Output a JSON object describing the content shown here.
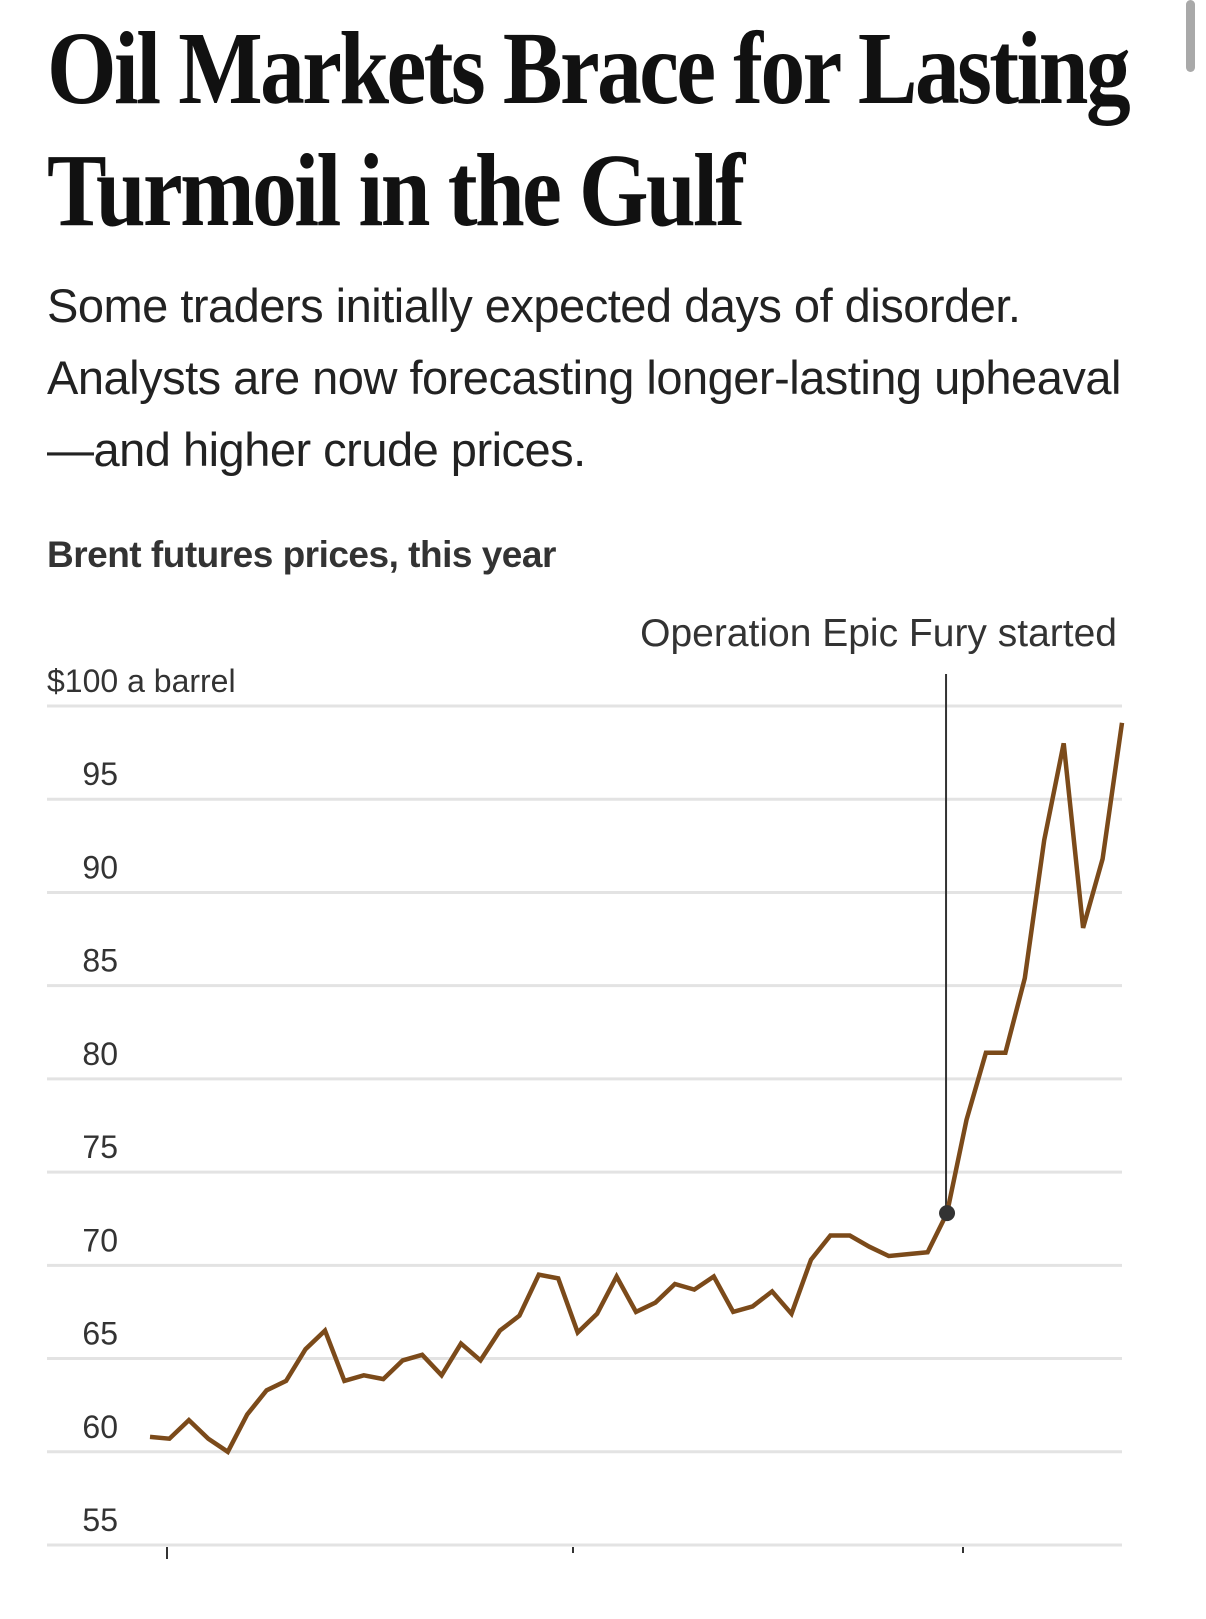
{
  "article": {
    "headline_lines": [
      "Oil Markets Brace for Lasting",
      "Turmoil in the Gulf"
    ],
    "dek": "Some traders initially expected days of disorder. Analysts are now forecasting longer-lasting upheaval—and higher crude prices."
  },
  "colors": {
    "line": "#7b4a1a",
    "annotation": "#333333",
    "grid": "#e3e3e3"
  },
  "chart_data": {
    "type": "line",
    "title": "Brent futures prices, this year",
    "xlabel": "",
    "ylabel": "$ a barrel",
    "ylim": [
      55,
      100
    ],
    "yticks": [
      55,
      60,
      65,
      70,
      75,
      80,
      85,
      90,
      95,
      100
    ],
    "ytick_labels": [
      "55",
      "60",
      "65",
      "70",
      "75",
      "80",
      "85",
      "90",
      "95",
      "$100 a barrel"
    ],
    "grid": true,
    "x_tick_indices": [
      1,
      21,
      40
    ],
    "x_tick_labels": [
      "",
      "",
      ""
    ],
    "series": [
      {
        "name": "Brent futures",
        "values": [
          60.8,
          60.7,
          61.7,
          60.7,
          60.0,
          62.0,
          63.3,
          63.8,
          65.5,
          66.5,
          63.8,
          64.1,
          63.9,
          64.9,
          65.2,
          64.1,
          65.8,
          64.9,
          66.5,
          67.3,
          69.5,
          69.3,
          66.4,
          67.4,
          69.4,
          67.5,
          68.0,
          69.0,
          68.7,
          69.4,
          67.5,
          67.8,
          68.6,
          67.4,
          70.3,
          71.6,
          71.6,
          71.0,
          70.5,
          70.6,
          70.7,
          72.8,
          77.8,
          81.4,
          81.4,
          85.4,
          92.8,
          98.0,
          88.1,
          91.8,
          99.1
        ]
      }
    ],
    "annotations": [
      {
        "label": "Operation Epic Fury started",
        "index": 41,
        "value": 72.8
      }
    ]
  }
}
